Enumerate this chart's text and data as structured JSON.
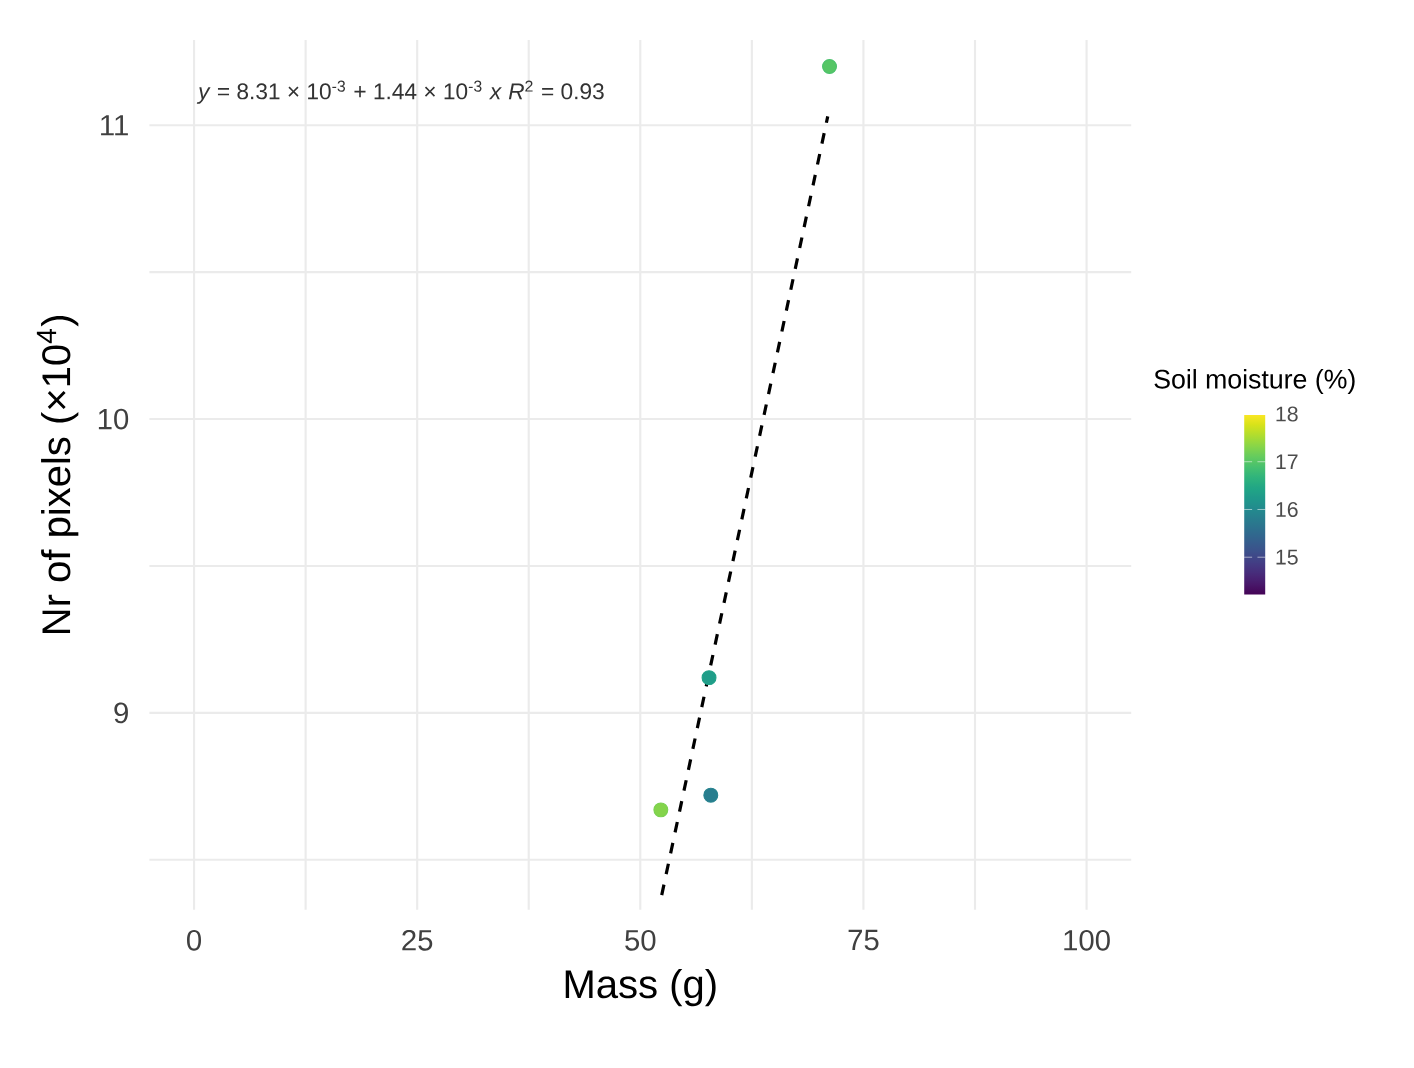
{
  "chart_data": {
    "type": "scatter",
    "xlabel": "Mass (g)",
    "ylabel": "Nr of pixels (×10$^{4}$)",
    "clabel": "Soil moisture (%)",
    "annotations": [
      "*y* = 8.31 × 10$^{-3}$ + 1.44 × 10$^{-3}$ *x*   *R*$^{2}$ = 0.93"
    ],
    "series": [
      {
        "x": [
          71.2,
          57.7,
          57.9,
          52.3
        ],
        "values": [
          11.2,
          9.12,
          8.72,
          8.67
        ],
        "cvalues": [
          17.0,
          16.3,
          15.8,
          17.3
        ],
        "colors": [
          "#4bc16d",
          "#1fa187",
          "#26828e",
          "#7ad151"
        ],
        "marker": "circle"
      },
      {
        "type": "line",
        "x": [
          52.4,
          71.0
        ],
        "values": [
          8.38,
          11.03
        ],
        "color": "#000000",
        "line_style": "dashed",
        "marker": "none"
      }
    ],
    "xlim": [
      -5,
      105
    ],
    "ylim": [
      8.33,
      11.29
    ],
    "xticks": [
      0,
      {
        "value": 12.5,
        "label": null
      },
      25,
      {
        "value": 37.5,
        "label": null
      },
      50,
      {
        "value": 62.5,
        "label": null
      },
      75,
      {
        "value": 87.5,
        "label": null
      },
      100
    ],
    "yticks": [
      {
        "value": 8.5,
        "label": null
      },
      9,
      {
        "value": 9.5,
        "label": null
      },
      10,
      {
        "value": 10.5,
        "label": null
      },
      11
    ],
    "clim": [
      14.2,
      18
    ],
    "cticks": [
      15,
      16,
      17,
      18
    ],
    "grid": true
  }
}
